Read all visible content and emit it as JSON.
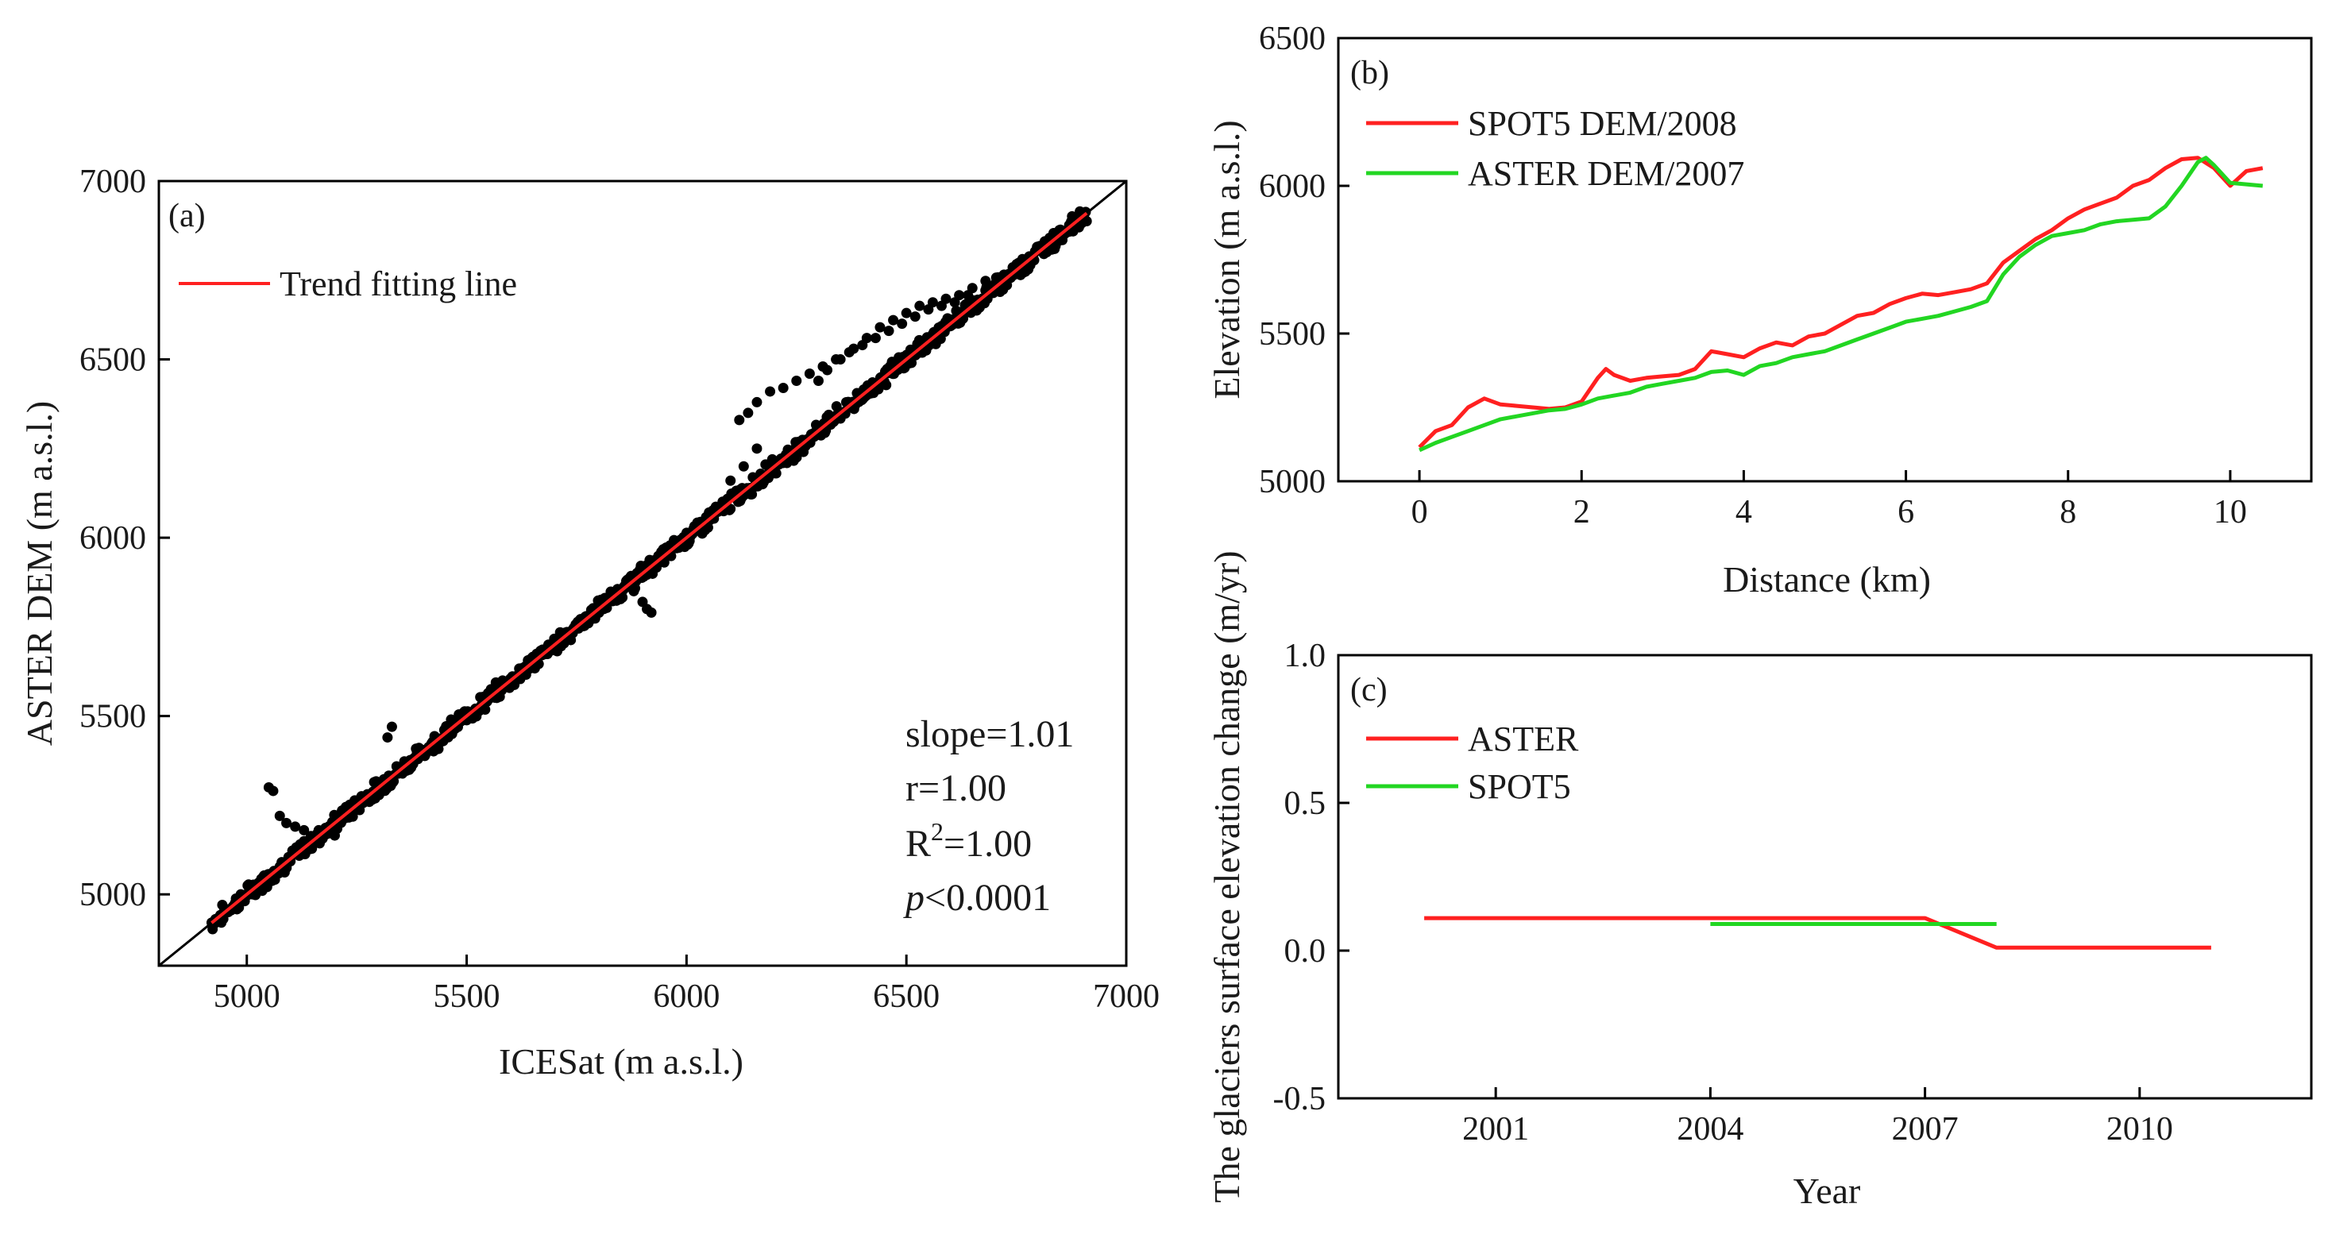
{
  "chart_data": [
    {
      "panel": "(a)",
      "type": "scatter",
      "xlabel": "ICESat (m a.s.l.)",
      "ylabel": "ASTER DEM (m a.s.l.)",
      "xlim": [
        4800,
        7000
      ],
      "ylim": [
        4800,
        7000
      ],
      "xticks": [
        5000,
        5500,
        6000,
        6500,
        7000
      ],
      "yticks": [
        5000,
        5500,
        6000,
        6500,
        7000
      ],
      "legend": [
        {
          "label": "Trend fitting line",
          "color": "#ff2020"
        }
      ],
      "trend_line": {
        "slope": 1.01,
        "x_range": [
          4920,
          6910
        ]
      },
      "identity_line": true,
      "stats": {
        "slope_text": "slope=1.01",
        "r_text": "r=1.00",
        "r2_prefix": "R",
        "r2_exp": "2",
        "r2_value": "=1.00",
        "p_prefix": "p",
        "p_value": "<0.0001"
      },
      "scatter_main_range": [
        4920,
        6910
      ],
      "scatter_outliers": [
        [
          5050,
          5300
        ],
        [
          5060,
          5290
        ],
        [
          5075,
          5220
        ],
        [
          5090,
          5200
        ],
        [
          5110,
          5190
        ],
        [
          5130,
          5180
        ],
        [
          5160,
          5170
        ],
        [
          5200,
          5165
        ],
        [
          5330,
          5470
        ],
        [
          5320,
          5440
        ],
        [
          5880,
          5850
        ],
        [
          5900,
          5820
        ],
        [
          5910,
          5800
        ],
        [
          5920,
          5790
        ],
        [
          6100,
          6160
        ],
        [
          6130,
          6200
        ],
        [
          6160,
          6250
        ],
        [
          6120,
          6330
        ],
        [
          6140,
          6350
        ],
        [
          6160,
          6380
        ],
        [
          6190,
          6410
        ],
        [
          6220,
          6420
        ],
        [
          6250,
          6440
        ],
        [
          6280,
          6460
        ],
        [
          6310,
          6480
        ],
        [
          6340,
          6500
        ],
        [
          6370,
          6520
        ],
        [
          6400,
          6540
        ],
        [
          6430,
          6560
        ],
        [
          6460,
          6580
        ],
        [
          6490,
          6600
        ],
        [
          6520,
          6620
        ],
        [
          6550,
          6640
        ],
        [
          6580,
          6650
        ],
        [
          6610,
          6660
        ],
        [
          6640,
          6680
        ],
        [
          6300,
          6440
        ],
        [
          6320,
          6470
        ],
        [
          6350,
          6500
        ],
        [
          6380,
          6530
        ],
        [
          6410,
          6560
        ],
        [
          6440,
          6590
        ],
        [
          6470,
          6610
        ],
        [
          6500,
          6630
        ],
        [
          6530,
          6650
        ],
        [
          6560,
          6660
        ],
        [
          6590,
          6670
        ],
        [
          6620,
          6680
        ],
        [
          6650,
          6700
        ],
        [
          6680,
          6720
        ]
      ]
    },
    {
      "panel": "(b)",
      "type": "line",
      "xlabel": "Distance (km)",
      "ylabel": "Elevation (m a.s.l.)",
      "xlim": [
        -1,
        11
      ],
      "ylim": [
        5000,
        6500
      ],
      "xticks": [
        0,
        2,
        4,
        6,
        8,
        10
      ],
      "yticks": [
        5000,
        5500,
        6000,
        6500
      ],
      "series": [
        {
          "name": "SPOT5 DEM/2008",
          "color": "#ff2020",
          "x": [
            0,
            0.2,
            0.4,
            0.6,
            0.8,
            1.0,
            1.2,
            1.4,
            1.6,
            1.8,
            2.0,
            2.2,
            2.3,
            2.4,
            2.6,
            2.8,
            3.0,
            3.2,
            3.4,
            3.6,
            3.8,
            4.0,
            4.2,
            4.4,
            4.6,
            4.8,
            5.0,
            5.2,
            5.4,
            5.6,
            5.8,
            6.0,
            6.2,
            6.4,
            6.6,
            6.8,
            7.0,
            7.2,
            7.4,
            7.6,
            7.8,
            8.0,
            8.2,
            8.4,
            8.6,
            8.8,
            9.0,
            9.2,
            9.4,
            9.6,
            9.8,
            10.0,
            10.2,
            10.4
          ],
          "y": [
            5115,
            5170,
            5190,
            5250,
            5280,
            5260,
            5255,
            5250,
            5245,
            5250,
            5270,
            5350,
            5380,
            5360,
            5340,
            5350,
            5355,
            5360,
            5380,
            5440,
            5430,
            5420,
            5450,
            5470,
            5460,
            5490,
            5500,
            5530,
            5560,
            5570,
            5600,
            5620,
            5635,
            5630,
            5640,
            5650,
            5670,
            5740,
            5780,
            5820,
            5850,
            5890,
            5920,
            5940,
            5960,
            6000,
            6020,
            6060,
            6090,
            6095,
            6060,
            6000,
            6050,
            6060
          ]
        },
        {
          "name": "ASTER DEM/2007",
          "color": "#22d622",
          "x": [
            0,
            0.2,
            0.4,
            0.6,
            0.8,
            1.0,
            1.2,
            1.4,
            1.6,
            1.8,
            2.0,
            2.2,
            2.4,
            2.6,
            2.8,
            3.0,
            3.2,
            3.4,
            3.6,
            3.8,
            4.0,
            4.2,
            4.4,
            4.6,
            4.8,
            5.0,
            5.2,
            5.4,
            5.6,
            5.8,
            6.0,
            6.2,
            6.4,
            6.6,
            6.8,
            7.0,
            7.2,
            7.4,
            7.6,
            7.8,
            8.0,
            8.2,
            8.4,
            8.6,
            8.8,
            9.0,
            9.2,
            9.4,
            9.6,
            9.7,
            9.8,
            10.0,
            10.2,
            10.4
          ],
          "y": [
            5105,
            5130,
            5150,
            5170,
            5190,
            5210,
            5220,
            5230,
            5240,
            5245,
            5260,
            5280,
            5290,
            5300,
            5320,
            5330,
            5340,
            5350,
            5370,
            5375,
            5360,
            5390,
            5400,
            5420,
            5430,
            5440,
            5460,
            5480,
            5500,
            5520,
            5540,
            5550,
            5560,
            5575,
            5590,
            5610,
            5700,
            5760,
            5800,
            5830,
            5840,
            5850,
            5870,
            5880,
            5885,
            5890,
            5930,
            6000,
            6080,
            6095,
            6070,
            6010,
            6005,
            6000
          ]
        }
      ]
    },
    {
      "panel": "(c)",
      "type": "line",
      "xlabel": "Year",
      "ylabel": "The glaciers surface elevation change (m/yr)",
      "xlim": [
        1998.8,
        2012.4
      ],
      "ylim": [
        -0.5,
        1.0
      ],
      "xticks": [
        2001,
        2004,
        2007,
        2010
      ],
      "yticks": [
        -0.5,
        0.0,
        0.5,
        1.0
      ],
      "series": [
        {
          "name": "ASTER",
          "color": "#ff2020",
          "x": [
            2000,
            2007,
            2008,
            2011
          ],
          "y": [
            0.11,
            0.11,
            0.01,
            0.01
          ]
        },
        {
          "name": "SPOT5",
          "color": "#22d622",
          "x": [
            2004,
            2008
          ],
          "y": [
            0.09,
            0.09
          ]
        }
      ]
    }
  ]
}
